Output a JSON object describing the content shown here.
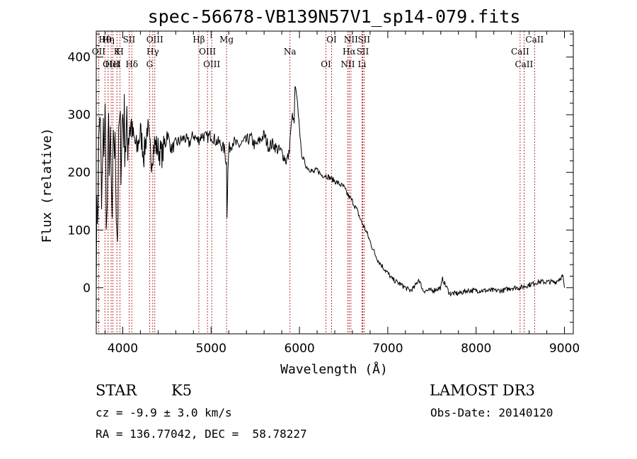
{
  "chart_data": {
    "type": "line",
    "title": "spec-56678-VB139N57V1_sp14-079.fits",
    "xlabel": "Wavelength (Å)",
    "ylabel": "Flux (relative)",
    "xlim": [
      3700,
      9100
    ],
    "ylim": [
      -80,
      445
    ],
    "xticks": [
      4000,
      5000,
      6000,
      7000,
      8000,
      9000
    ],
    "yticks": [
      0,
      100,
      200,
      300,
      400
    ],
    "grid": false,
    "spectrum": {
      "x": [
        3700,
        3720,
        3740,
        3760,
        3780,
        3800,
        3820,
        3840,
        3860,
        3880,
        3900,
        3920,
        3940,
        3960,
        3980,
        4000,
        4040,
        4080,
        4120,
        4160,
        4200,
        4240,
        4280,
        4320,
        4360,
        4400,
        4450,
        4500,
        4550,
        4600,
        4650,
        4700,
        4750,
        4800,
        4850,
        4900,
        4950,
        5000,
        5050,
        5100,
        5150,
        5175,
        5180,
        5190,
        5200,
        5250,
        5300,
        5350,
        5400,
        5450,
        5500,
        5550,
        5600,
        5650,
        5700,
        5750,
        5800,
        5850,
        5880,
        5900,
        5920,
        5940,
        5950,
        5970,
        6000,
        6020,
        6040,
        6080,
        6120,
        6160,
        6200,
        6250,
        6300,
        6350,
        6400,
        6450,
        6500,
        6550,
        6600,
        6650,
        6700,
        6750,
        6800,
        6850,
        6900,
        6950,
        7000,
        7050,
        7100,
        7150,
        7200,
        7250,
        7300,
        7350,
        7400,
        7500,
        7600,
        7620,
        7700,
        7800,
        7900,
        8000,
        8100,
        8200,
        8300,
        8400,
        8500,
        8600,
        8700,
        8800,
        8900,
        8980,
        9000
      ],
      "y": [
        60,
        180,
        320,
        130,
        250,
        290,
        100,
        260,
        220,
        110,
        270,
        200,
        90,
        280,
        240,
        300,
        250,
        290,
        260,
        240,
        270,
        230,
        280,
        220,
        250,
        240,
        230,
        270,
        240,
        250,
        255,
        260,
        250,
        265,
        255,
        265,
        260,
        265,
        255,
        250,
        240,
        215,
        130,
        200,
        240,
        255,
        245,
        250,
        255,
        260,
        245,
        255,
        265,
        245,
        250,
        240,
        235,
        220,
        230,
        270,
        300,
        285,
        350,
        330,
        280,
        235,
        225,
        210,
        205,
        200,
        205,
        195,
        195,
        190,
        185,
        180,
        175,
        160,
        150,
        135,
        115,
        100,
        80,
        60,
        45,
        35,
        25,
        15,
        10,
        5,
        0,
        -5,
        0,
        15,
        -5,
        -5,
        0,
        15,
        -10,
        -10,
        -5,
        -5,
        -5,
        -5,
        -5,
        0,
        0,
        5,
        10,
        10,
        10,
        20,
        0
      ]
    },
    "line_labels": [
      {
        "text": "Hθ",
        "x": 3798
      },
      {
        "text": "OII",
        "x": 3727
      },
      {
        "text": "OIII",
        "x": 3869
      },
      {
        "text": "Hη",
        "x": 3835
      },
      {
        "text": "K",
        "x": 3934
      },
      {
        "text": "HeI",
        "x": 3889
      },
      {
        "text": "SII",
        "x": 4072
      },
      {
        "text": "H",
        "x": 3969
      },
      {
        "text": "Hδ",
        "x": 4102
      },
      {
        "text": "OIII",
        "x": 4363
      },
      {
        "text": "Hγ",
        "x": 4340
      },
      {
        "text": "G",
        "x": 4304
      },
      {
        "text": "Hβ",
        "x": 4861
      },
      {
        "text": "OIII",
        "x": 4959
      },
      {
        "text": "OIII",
        "x": 5007
      },
      {
        "text": "Mg",
        "x": 5175
      },
      {
        "text": "Na",
        "x": 5893
      },
      {
        "text": "OI",
        "x": 6300
      },
      {
        "text": "OI",
        "x": 6364
      },
      {
        "text": "Hα",
        "x": 6563
      },
      {
        "text": "NII",
        "x": 6548
      },
      {
        "text": "NII",
        "x": 6583
      },
      {
        "text": "SII",
        "x": 6716
      },
      {
        "text": "Li",
        "x": 6708
      },
      {
        "text": "SII",
        "x": 6731
      },
      {
        "text": "CaII",
        "x": 8498
      },
      {
        "text": "CaII",
        "x": 8542
      },
      {
        "text": "CaII",
        "x": 8662
      }
    ],
    "marker_lines": [
      3727,
      3798,
      3835,
      3869,
      3889,
      3934,
      3969,
      4072,
      4102,
      4304,
      4340,
      4363,
      4861,
      4959,
      5007,
      5175,
      5893,
      6300,
      6364,
      6548,
      6563,
      6583,
      6708,
      6716,
      6731,
      8498,
      8542,
      8662
    ]
  },
  "info": {
    "class": "STAR",
    "subclass": "K5",
    "survey": "LAMOST DR3",
    "cz": "cz = -9.9 ± 3.0 km/s",
    "obs_date": "Obs-Date: 20140120",
    "radec": "RA = 136.77042, DEC =  58.78227"
  }
}
